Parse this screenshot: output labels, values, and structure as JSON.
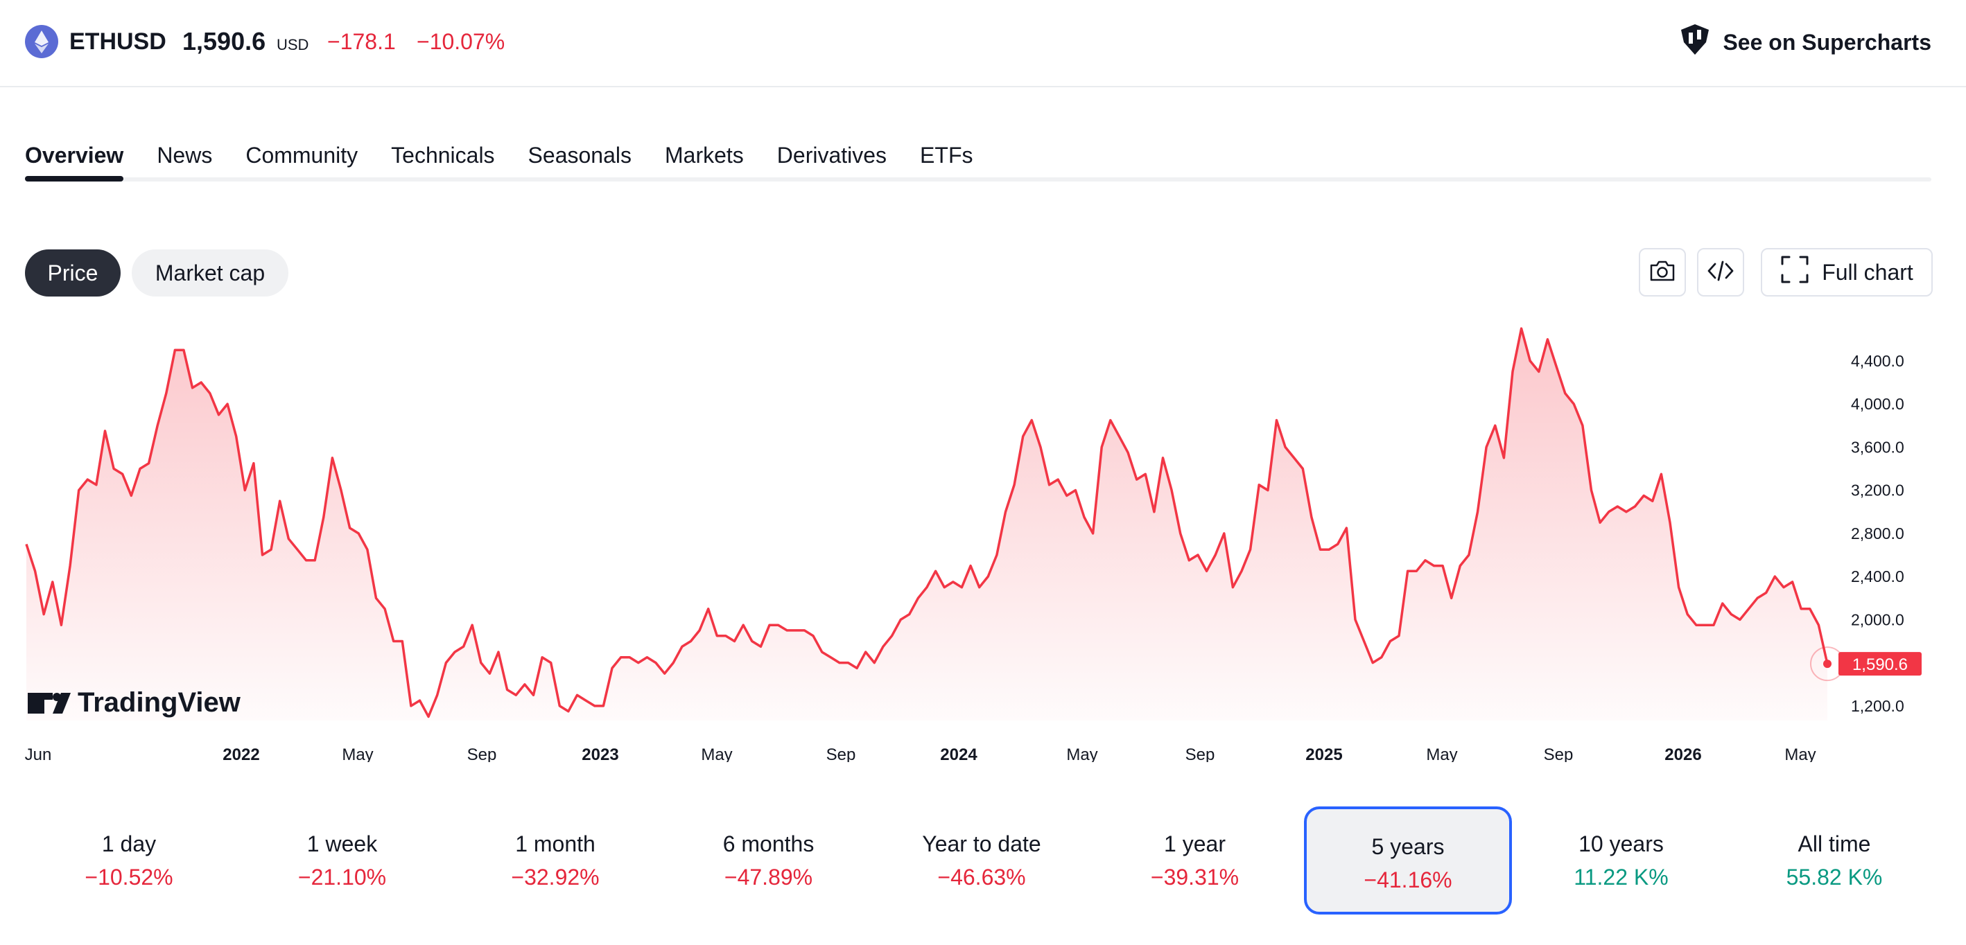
{
  "header": {
    "symbol": "ETHUSD",
    "price": "1,590.6",
    "currency": "USD",
    "change_abs": "−178.1",
    "change_pct": "−10.07%",
    "supercharts_label": "See on Supercharts"
  },
  "tabs": [
    "Overview",
    "News",
    "Community",
    "Technicals",
    "Seasonals",
    "Markets",
    "Derivatives",
    "ETFs"
  ],
  "controls": {
    "price_label": "Price",
    "market_cap_label": "Market cap",
    "full_chart_label": "Full chart"
  },
  "icons": {
    "coin": "ethereum-icon",
    "supercharts": "supercharts-icon",
    "snapshot": "camera-icon",
    "embed": "code-icon",
    "fullchart": "fullscreen-icon"
  },
  "colors": {
    "line": "#f23645",
    "negative": "#e5263b",
    "positive": "#089981",
    "selected_border": "#2962ff",
    "price_tag": "#f23645"
  },
  "watermark": "TradingView",
  "chart_data": {
    "type": "area",
    "series": [
      {
        "values": [
          2700,
          2450,
          2050,
          2350,
          1950,
          2500,
          3200,
          3300,
          3250,
          3750,
          3400,
          3350,
          3150,
          3400,
          3450,
          3800,
          4100,
          4500,
          4500,
          4150,
          4200,
          4100,
          3900,
          4000,
          3700,
          3200,
          3450,
          2600,
          2650,
          3100,
          2750,
          2650,
          2550,
          2550,
          2950,
          3500,
          3200,
          2850,
          2800,
          2650,
          2200,
          2100,
          1800,
          1800,
          1200,
          1250,
          1100,
          1300,
          1600,
          1700,
          1750,
          1950,
          1600,
          1500,
          1700,
          1350,
          1300,
          1400,
          1300,
          1650,
          1600,
          1200,
          1150,
          1300,
          1250,
          1200,
          1200,
          1550,
          1650,
          1650,
          1600,
          1650,
          1600,
          1500,
          1600,
          1750,
          1800,
          1900,
          2100,
          1850,
          1850,
          1800,
          1950,
          1800,
          1750,
          1950,
          1950,
          1900,
          1900,
          1900,
          1850,
          1700,
          1650,
          1600,
          1600,
          1550,
          1700,
          1600,
          1750,
          1850,
          2000,
          2050,
          2200,
          2300,
          2450,
          2300,
          2350,
          2300,
          2500,
          2300,
          2400,
          2600,
          3000,
          3250,
          3700,
          3850,
          3600,
          3250,
          3300,
          3150,
          3200,
          2950,
          2800,
          3600,
          3850,
          3700,
          3550,
          3300,
          3350,
          3000,
          3500,
          3200,
          2800,
          2550,
          2600,
          2450,
          2600,
          2800,
          2300,
          2450,
          2650,
          3250,
          3200,
          3850,
          3600,
          3500,
          3400,
          2950,
          2650,
          2650,
          2700,
          2850,
          2000,
          1800,
          1600,
          1650,
          1800,
          1850,
          2450,
          2450,
          2550,
          2500,
          2500,
          2200,
          2500,
          2600,
          3000,
          3600,
          3800,
          3500,
          4300,
          4700,
          4400,
          4300,
          4600,
          4350,
          4100,
          4000,
          3800,
          3200,
          2900,
          3000,
          3050,
          3000,
          3050,
          3150,
          3100,
          3350,
          2900,
          2300,
          2050,
          1950,
          1950,
          1950,
          2150,
          2050,
          2000,
          2100,
          2200,
          2250,
          2400,
          2300,
          2350,
          2100,
          2100,
          1950,
          1590.6
        ]
      }
    ],
    "ylim": [
      1000,
      4800
    ],
    "yticks": [
      "4,400.0",
      "4,000.0",
      "3,600.0",
      "3,200.0",
      "2,800.0",
      "2,400.0",
      "2,000.0",
      "1,200.0"
    ],
    "ytick_values": [
      4400,
      4000,
      3600,
      3200,
      2800,
      2400,
      2000,
      1200
    ],
    "xticks": [
      "Jun",
      "2022",
      "May",
      "Sep",
      "2023",
      "May",
      "Sep",
      "2024",
      "May",
      "Sep",
      "2025",
      "May",
      "Sep",
      "2026",
      "May"
    ],
    "xtick_bold": [
      false,
      true,
      false,
      false,
      true,
      false,
      false,
      true,
      false,
      false,
      true,
      false,
      false,
      true,
      false
    ],
    "last_value": "1,590.6",
    "grid": false
  },
  "periods": [
    {
      "label": "1 day",
      "value": "−10.52%",
      "sign": "neg"
    },
    {
      "label": "1 week",
      "value": "−21.10%",
      "sign": "neg"
    },
    {
      "label": "1 month",
      "value": "−32.92%",
      "sign": "neg"
    },
    {
      "label": "6 months",
      "value": "−47.89%",
      "sign": "neg"
    },
    {
      "label": "Year to date",
      "value": "−46.63%",
      "sign": "neg"
    },
    {
      "label": "1 year",
      "value": "−39.31%",
      "sign": "neg"
    },
    {
      "label": "5 years",
      "value": "−41.16%",
      "sign": "neg",
      "selected": true
    },
    {
      "label": "10 years",
      "value": "11.22 K%",
      "sign": "pos"
    },
    {
      "label": "All time",
      "value": "55.82 K%",
      "sign": "pos"
    }
  ]
}
